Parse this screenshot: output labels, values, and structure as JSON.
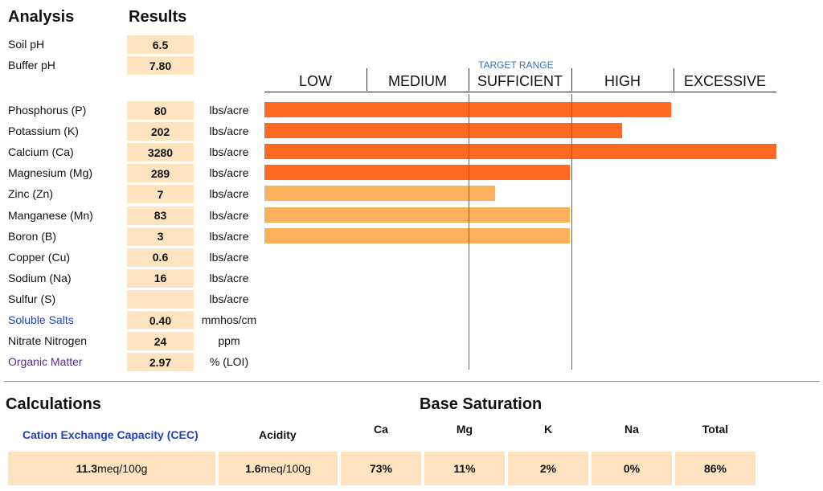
{
  "header": {
    "analysis": "Analysis",
    "results": "Results"
  },
  "ph_rows": [
    {
      "label": "Soil pH",
      "value": "6.5"
    },
    {
      "label": "Buffer pH",
      "value": "7.80"
    }
  ],
  "target_range_label": "TARGET RANGE",
  "scale": [
    "LOW",
    "MEDIUM",
    "SUFFICIENT",
    "HIGH",
    "EXCESSIVE"
  ],
  "nutrients": [
    {
      "label": "Phosphorus (P)",
      "value": "80",
      "unit": "lbs/acre",
      "level": 0.795,
      "color": "#ff6a22"
    },
    {
      "label": "Potassium (K)",
      "value": "202",
      "unit": "lbs/acre",
      "level": 0.698,
      "color": "#ff6a22"
    },
    {
      "label": "Calcium (Ca)",
      "value": "3280",
      "unit": "lbs/acre",
      "level": 1.0,
      "color": "#ff6a22"
    },
    {
      "label": "Magnesium (Mg)",
      "value": "289",
      "unit": "lbs/acre",
      "level": 0.597,
      "color": "#ff6a22"
    },
    {
      "label": "Zinc (Zn)",
      "value": "7",
      "unit": "lbs/acre",
      "level": 0.451,
      "color": "#fbb05e"
    },
    {
      "label": "Manganese (Mn)",
      "value": "83",
      "unit": "lbs/acre",
      "level": 0.597,
      "color": "#fbb05e"
    },
    {
      "label": "Boron (B)",
      "value": "3",
      "unit": "lbs/acre",
      "level": 0.597,
      "color": "#fbb05e"
    },
    {
      "label": "Copper (Cu)",
      "value": "0.6",
      "unit": "lbs/acre",
      "level": 0,
      "color": ""
    },
    {
      "label": "Sodium (Na)",
      "value": "16",
      "unit": "lbs/acre",
      "level": 0,
      "color": ""
    },
    {
      "label": "Sulfur (S)",
      "value": "",
      "unit": "lbs/acre",
      "level": 0,
      "color": ""
    },
    {
      "label": "Soluble Salts",
      "value": "0.40",
      "unit": "mmhos/cm",
      "level": 0,
      "color": "",
      "label_color": "#1f3fbf"
    },
    {
      "label": "Nitrate Nitrogen",
      "value": "24",
      "unit": "ppm",
      "level": 0,
      "color": ""
    },
    {
      "label": "Organic Matter",
      "value": "2.97",
      "unit": "% (LOI)",
      "level": 0,
      "color": "",
      "label_color": "#5a2c8a"
    }
  ],
  "calculations": {
    "title": "Calculations",
    "base_saturation_title": "Base Saturation",
    "cec_label": "Cation Exchange Capacity (CEC)",
    "cec_label_color": "#1f3fbf",
    "cec_value": "11.3",
    "cec_unit": "meq/100g",
    "acidity_label": "Acidity",
    "acidity_value": "1.6",
    "acidity_unit": "meq/100g",
    "bases": [
      {
        "label": "Ca",
        "value": "73%"
      },
      {
        "label": "Mg",
        "value": "11%"
      },
      {
        "label": "K",
        "value": "2%"
      },
      {
        "label": "Na",
        "value": "0%"
      },
      {
        "label": "Total",
        "value": "86%"
      }
    ]
  }
}
